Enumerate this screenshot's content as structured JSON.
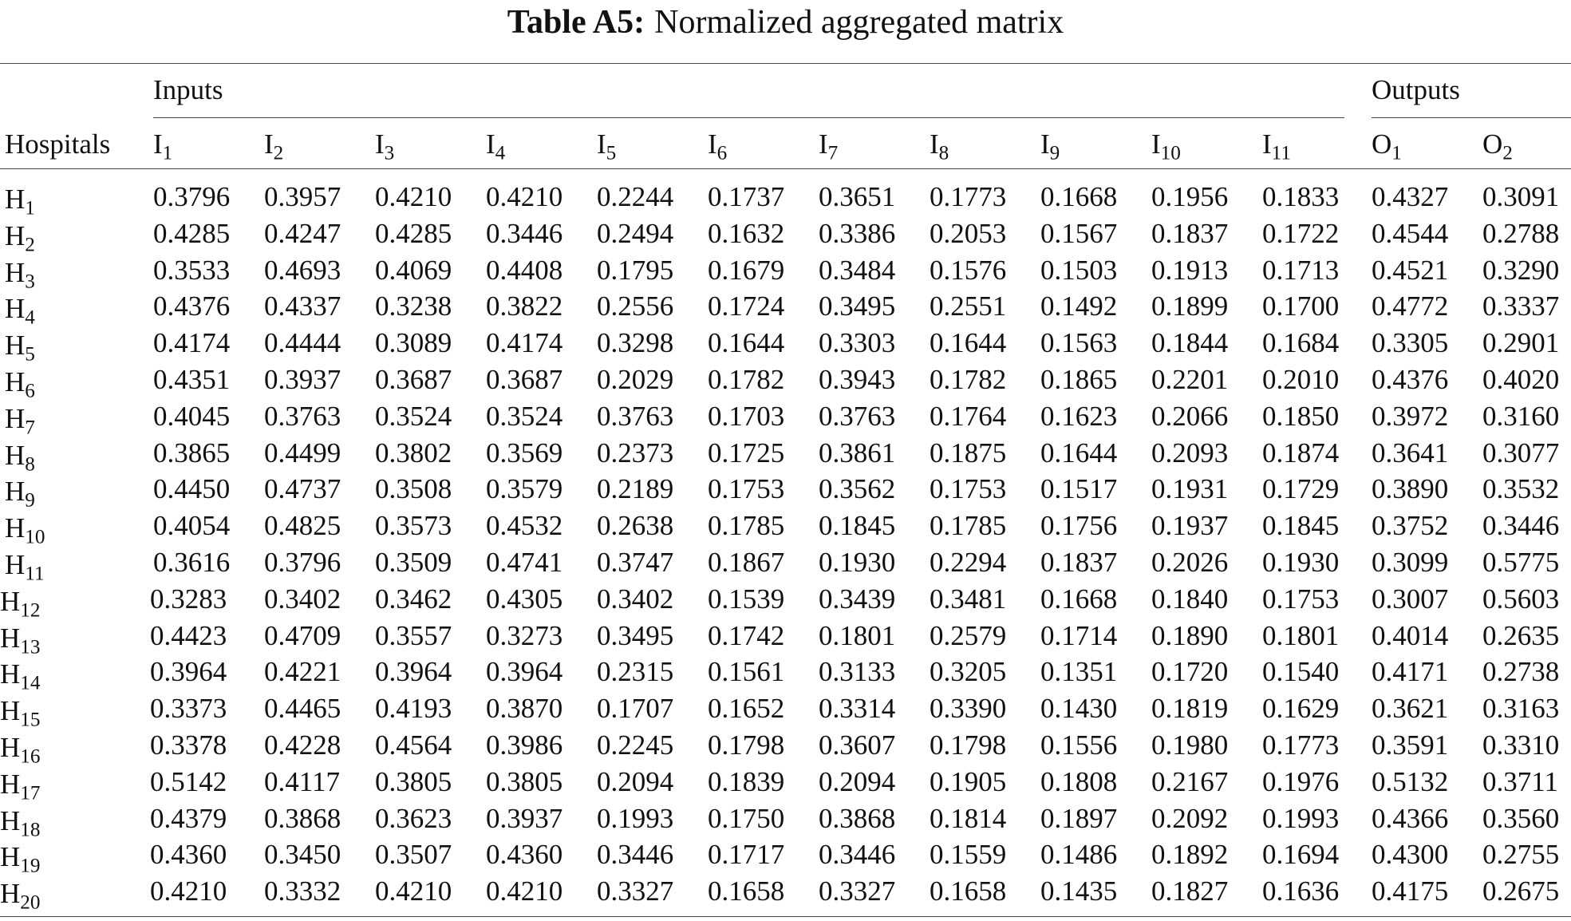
{
  "title": {
    "label": "Table A5:",
    "text": "Normalized aggregated matrix"
  },
  "groups": {
    "inputs": "Inputs",
    "outputs": "Outputs"
  },
  "stub_header": "Hospitals",
  "columns": [
    {
      "letter": "I",
      "sub": "1"
    },
    {
      "letter": "I",
      "sub": "2"
    },
    {
      "letter": "I",
      "sub": "3"
    },
    {
      "letter": "I",
      "sub": "4"
    },
    {
      "letter": "I",
      "sub": "5"
    },
    {
      "letter": "I",
      "sub": "6"
    },
    {
      "letter": "I",
      "sub": "7"
    },
    {
      "letter": "I",
      "sub": "8"
    },
    {
      "letter": "I",
      "sub": "9"
    },
    {
      "letter": "I",
      "sub": "10"
    },
    {
      "letter": "I",
      "sub": "11"
    },
    {
      "letter": "O",
      "sub": "1"
    },
    {
      "letter": "O",
      "sub": "2"
    }
  ],
  "rows": [
    {
      "letter": "H",
      "sub": "1",
      "values": [
        "0.3796",
        "0.3957",
        "0.4210",
        "0.4210",
        "0.2244",
        "0.1737",
        "0.3651",
        "0.1773",
        "0.1668",
        "0.1956",
        "0.1833",
        "0.4327",
        "0.3091"
      ]
    },
    {
      "letter": "H",
      "sub": "2",
      "values": [
        "0.4285",
        "0.4247",
        "0.4285",
        "0.3446",
        "0.2494",
        "0.1632",
        "0.3386",
        "0.2053",
        "0.1567",
        "0.1837",
        "0.1722",
        "0.4544",
        "0.2788"
      ]
    },
    {
      "letter": "H",
      "sub": "3",
      "values": [
        "0.3533",
        "0.4693",
        "0.4069",
        "0.4408",
        "0.1795",
        "0.1679",
        "0.3484",
        "0.1576",
        "0.1503",
        "0.1913",
        "0.1713",
        "0.4521",
        "0.3290"
      ]
    },
    {
      "letter": "H",
      "sub": "4",
      "values": [
        "0.4376",
        "0.4337",
        "0.3238",
        "0.3822",
        "0.2556",
        "0.1724",
        "0.3495",
        "0.2551",
        "0.1492",
        "0.1899",
        "0.1700",
        "0.4772",
        "0.3337"
      ]
    },
    {
      "letter": "H",
      "sub": "5",
      "values": [
        "0.4174",
        "0.4444",
        "0.3089",
        "0.4174",
        "0.3298",
        "0.1644",
        "0.3303",
        "0.1644",
        "0.1563",
        "0.1844",
        "0.1684",
        "0.3305",
        "0.2901"
      ]
    },
    {
      "letter": "H",
      "sub": "6",
      "values": [
        "0.4351",
        "0.3937",
        "0.3687",
        "0.3687",
        "0.2029",
        "0.1782",
        "0.3943",
        "0.1782",
        "0.1865",
        "0.2201",
        "0.2010",
        "0.4376",
        "0.4020"
      ]
    },
    {
      "letter": "H",
      "sub": "7",
      "values": [
        "0.4045",
        "0.3763",
        "0.3524",
        "0.3524",
        "0.3763",
        "0.1703",
        "0.3763",
        "0.1764",
        "0.1623",
        "0.2066",
        "0.1850",
        "0.3972",
        "0.3160"
      ]
    },
    {
      "letter": "H",
      "sub": "8",
      "values": [
        "0.3865",
        "0.4499",
        "0.3802",
        "0.3569",
        "0.2373",
        "0.1725",
        "0.3861",
        "0.1875",
        "0.1644",
        "0.2093",
        "0.1874",
        "0.3641",
        "0.3077"
      ]
    },
    {
      "letter": "H",
      "sub": "9",
      "values": [
        "0.4450",
        "0.4737",
        "0.3508",
        "0.3579",
        "0.2189",
        "0.1753",
        "0.3562",
        "0.1753",
        "0.1517",
        "0.1931",
        "0.1729",
        "0.3890",
        "0.3532"
      ]
    },
    {
      "letter": "H",
      "sub": "10",
      "values": [
        "0.4054",
        "0.4825",
        "0.3573",
        "0.4532",
        "0.2638",
        "0.1785",
        "0.1845",
        "0.1785",
        "0.1756",
        "0.1937",
        "0.1845",
        "0.3752",
        "0.3446"
      ]
    },
    {
      "letter": "H",
      "sub": "11",
      "values": [
        "0.3616",
        "0.3796",
        "0.3509",
        "0.4741",
        "0.3747",
        "0.1867",
        "0.1930",
        "0.2294",
        "0.1837",
        "0.2026",
        "0.1930",
        "0.3099",
        "0.5775"
      ]
    },
    {
      "letter": "H",
      "sub": "12",
      "values": [
        "0.3283",
        "0.3402",
        "0.3462",
        "0.4305",
        "0.3402",
        "0.1539",
        "0.3439",
        "0.3481",
        "0.1668",
        "0.1840",
        "0.1753",
        "0.3007",
        "0.5603"
      ]
    },
    {
      "letter": "H",
      "sub": "13",
      "values": [
        "0.4423",
        "0.4709",
        "0.3557",
        "0.3273",
        "0.3495",
        "0.1742",
        "0.1801",
        "0.2579",
        "0.1714",
        "0.1890",
        "0.1801",
        "0.4014",
        "0.2635"
      ]
    },
    {
      "letter": "H",
      "sub": "14",
      "values": [
        "0.3964",
        "0.4221",
        "0.3964",
        "0.3964",
        "0.2315",
        "0.1561",
        "0.3133",
        "0.3205",
        "0.1351",
        "0.1720",
        "0.1540",
        "0.4171",
        "0.2738"
      ]
    },
    {
      "letter": "H",
      "sub": "15",
      "values": [
        "0.3373",
        "0.4465",
        "0.4193",
        "0.3870",
        "0.1707",
        "0.1652",
        "0.3314",
        "0.3390",
        "0.1430",
        "0.1819",
        "0.1629",
        "0.3621",
        "0.3163"
      ]
    },
    {
      "letter": "H",
      "sub": "16",
      "values": [
        "0.3378",
        "0.4228",
        "0.4564",
        "0.3986",
        "0.2245",
        "0.1798",
        "0.3607",
        "0.1798",
        "0.1556",
        "0.1980",
        "0.1773",
        "0.3591",
        "0.3310"
      ]
    },
    {
      "letter": "H",
      "sub": "17",
      "values": [
        "0.5142",
        "0.4117",
        "0.3805",
        "0.3805",
        "0.2094",
        "0.1839",
        "0.2094",
        "0.1905",
        "0.1808",
        "0.2167",
        "0.1976",
        "0.5132",
        "0.3711"
      ]
    },
    {
      "letter": "H",
      "sub": "18",
      "values": [
        "0.4379",
        "0.3868",
        "0.3623",
        "0.3937",
        "0.1993",
        "0.1750",
        "0.3868",
        "0.1814",
        "0.1897",
        "0.2092",
        "0.1993",
        "0.4366",
        "0.3560"
      ]
    },
    {
      "letter": "H",
      "sub": "19",
      "values": [
        "0.4360",
        "0.3450",
        "0.3507",
        "0.4360",
        "0.3446",
        "0.1717",
        "0.3446",
        "0.1559",
        "0.1486",
        "0.1892",
        "0.1694",
        "0.4300",
        "0.2755"
      ]
    },
    {
      "letter": "H",
      "sub": "20",
      "values": [
        "0.4210",
        "0.3332",
        "0.4210",
        "0.4210",
        "0.3327",
        "0.1658",
        "0.3327",
        "0.1658",
        "0.1435",
        "0.1827",
        "0.1636",
        "0.4175",
        "0.2675"
      ]
    }
  ]
}
